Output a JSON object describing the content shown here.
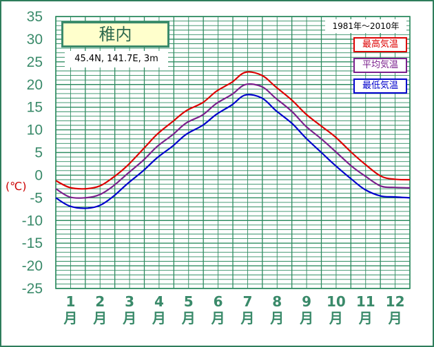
{
  "chart_data": {
    "type": "line",
    "title": "稚内",
    "subtitle": "45.4N, 141.7E, 3m",
    "period": "1981年〜2010年",
    "ylabel": "(℃)",
    "ylim": [
      -25,
      35
    ],
    "yticks": [
      "35",
      "30",
      "25",
      "20",
      "15",
      "10",
      "5",
      "0",
      "-5",
      "-10",
      "-15",
      "-20",
      "-25"
    ],
    "grid": true,
    "legend_position": "top-right",
    "x_labels": [
      {
        "num": "1",
        "unit": "月"
      },
      {
        "num": "2",
        "unit": "月"
      },
      {
        "num": "3",
        "unit": "月"
      },
      {
        "num": "4",
        "unit": "月"
      },
      {
        "num": "5",
        "unit": "月"
      },
      {
        "num": "6",
        "unit": "月"
      },
      {
        "num": "7",
        "unit": "月"
      },
      {
        "num": "8",
        "unit": "月"
      },
      {
        "num": "9",
        "unit": "月"
      },
      {
        "num": "10",
        "unit": "月"
      },
      {
        "num": "11",
        "unit": "月"
      },
      {
        "num": "12",
        "unit": "月"
      }
    ],
    "x": [
      1,
      15,
      31,
      46,
      60,
      74,
      91,
      105,
      121,
      135,
      152,
      166,
      182,
      196,
      213,
      227,
      244,
      258,
      274,
      288,
      305,
      319,
      335,
      349,
      365
    ],
    "series": [
      {
        "name": "最高気温",
        "color": "#dd0000",
        "values": [
          -1.2,
          -2.7,
          -3.0,
          -2.4,
          -0.5,
          2.0,
          5.8,
          9.0,
          11.8,
          14.2,
          16.0,
          18.5,
          20.5,
          22.7,
          22.0,
          19.5,
          16.5,
          13.5,
          10.8,
          8.5,
          5.0,
          2.4,
          -0.2,
          -0.9,
          -1.0
        ]
      },
      {
        "name": "平均気温",
        "color": "#7a1f8c",
        "values": [
          -3.0,
          -4.8,
          -5.0,
          -4.3,
          -2.4,
          0.2,
          3.3,
          6.3,
          8.9,
          11.5,
          13.3,
          15.8,
          17.8,
          20.0,
          19.5,
          17.0,
          14.0,
          10.8,
          8.0,
          5.3,
          2.0,
          -0.2,
          -2.4,
          -2.7,
          -2.8
        ]
      },
      {
        "name": "最低気温",
        "color": "#0000cc",
        "values": [
          -5.0,
          -6.8,
          -7.3,
          -6.7,
          -4.7,
          -2.0,
          1.0,
          3.8,
          6.4,
          9.0,
          11.0,
          13.4,
          15.5,
          17.7,
          17.0,
          14.3,
          11.4,
          8.2,
          5.0,
          2.2,
          -0.9,
          -3.2,
          -4.6,
          -4.8,
          -5.0
        ]
      }
    ]
  }
}
